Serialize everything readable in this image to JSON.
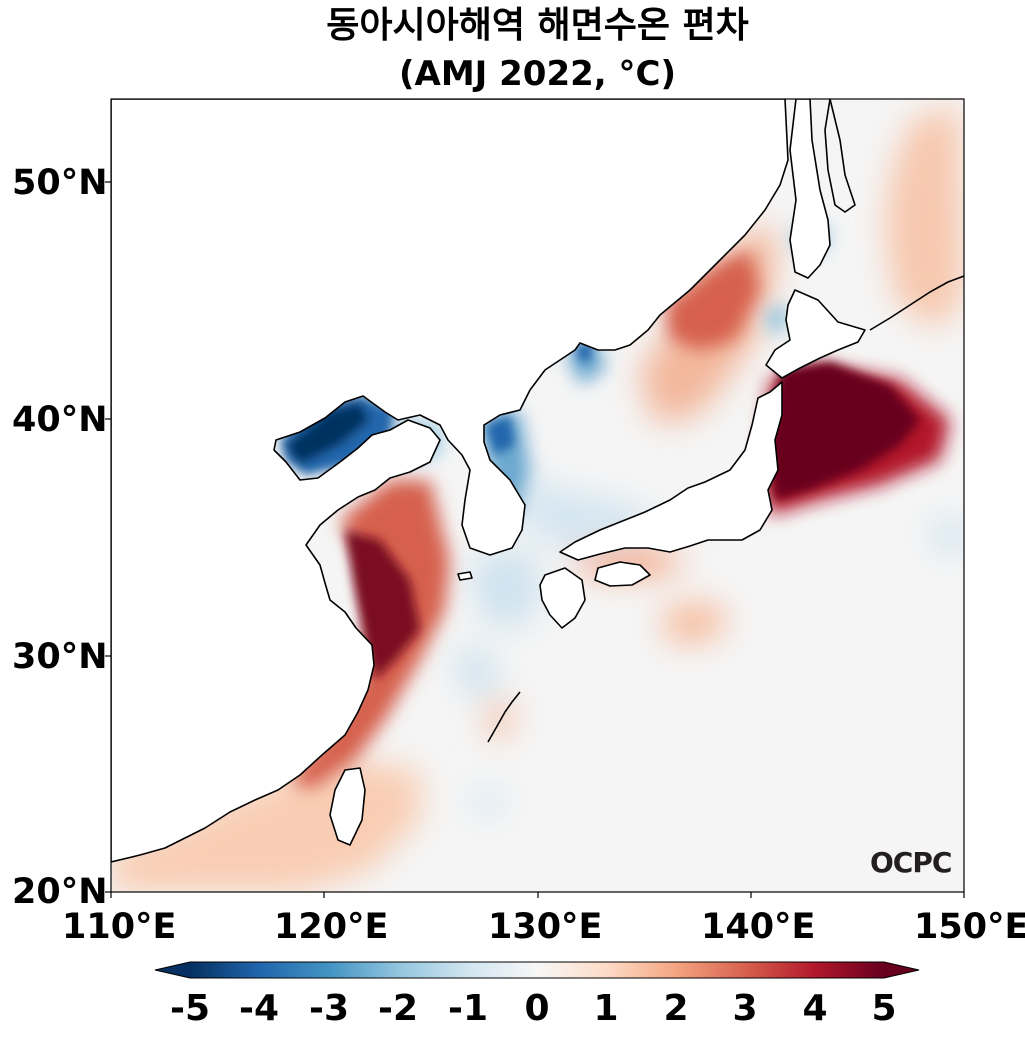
{
  "title": {
    "line1": "동아시아해역 해면수온 편차",
    "line2": "(AMJ 2022, °C)"
  },
  "map": {
    "lon_range": [
      110,
      150
    ],
    "lat_range": [
      20,
      53.5
    ],
    "lat_ticks": [
      "50°N",
      "40°N",
      "30°N",
      "20°N"
    ],
    "lon_ticks": [
      "110°E",
      "120°E",
      "130°E",
      "140°E",
      "150°E"
    ],
    "background_color": "#f5f5f5",
    "coastline_color": "#000000"
  },
  "colorbar": {
    "cmap": "RdBu_r",
    "range": [
      -5,
      5
    ],
    "extend": "both",
    "ticks": [
      "-5",
      "-4",
      "-3",
      "-2",
      "-1",
      "0",
      "1",
      "2",
      "3",
      "4",
      "5"
    ]
  },
  "logo": "OCPC"
}
